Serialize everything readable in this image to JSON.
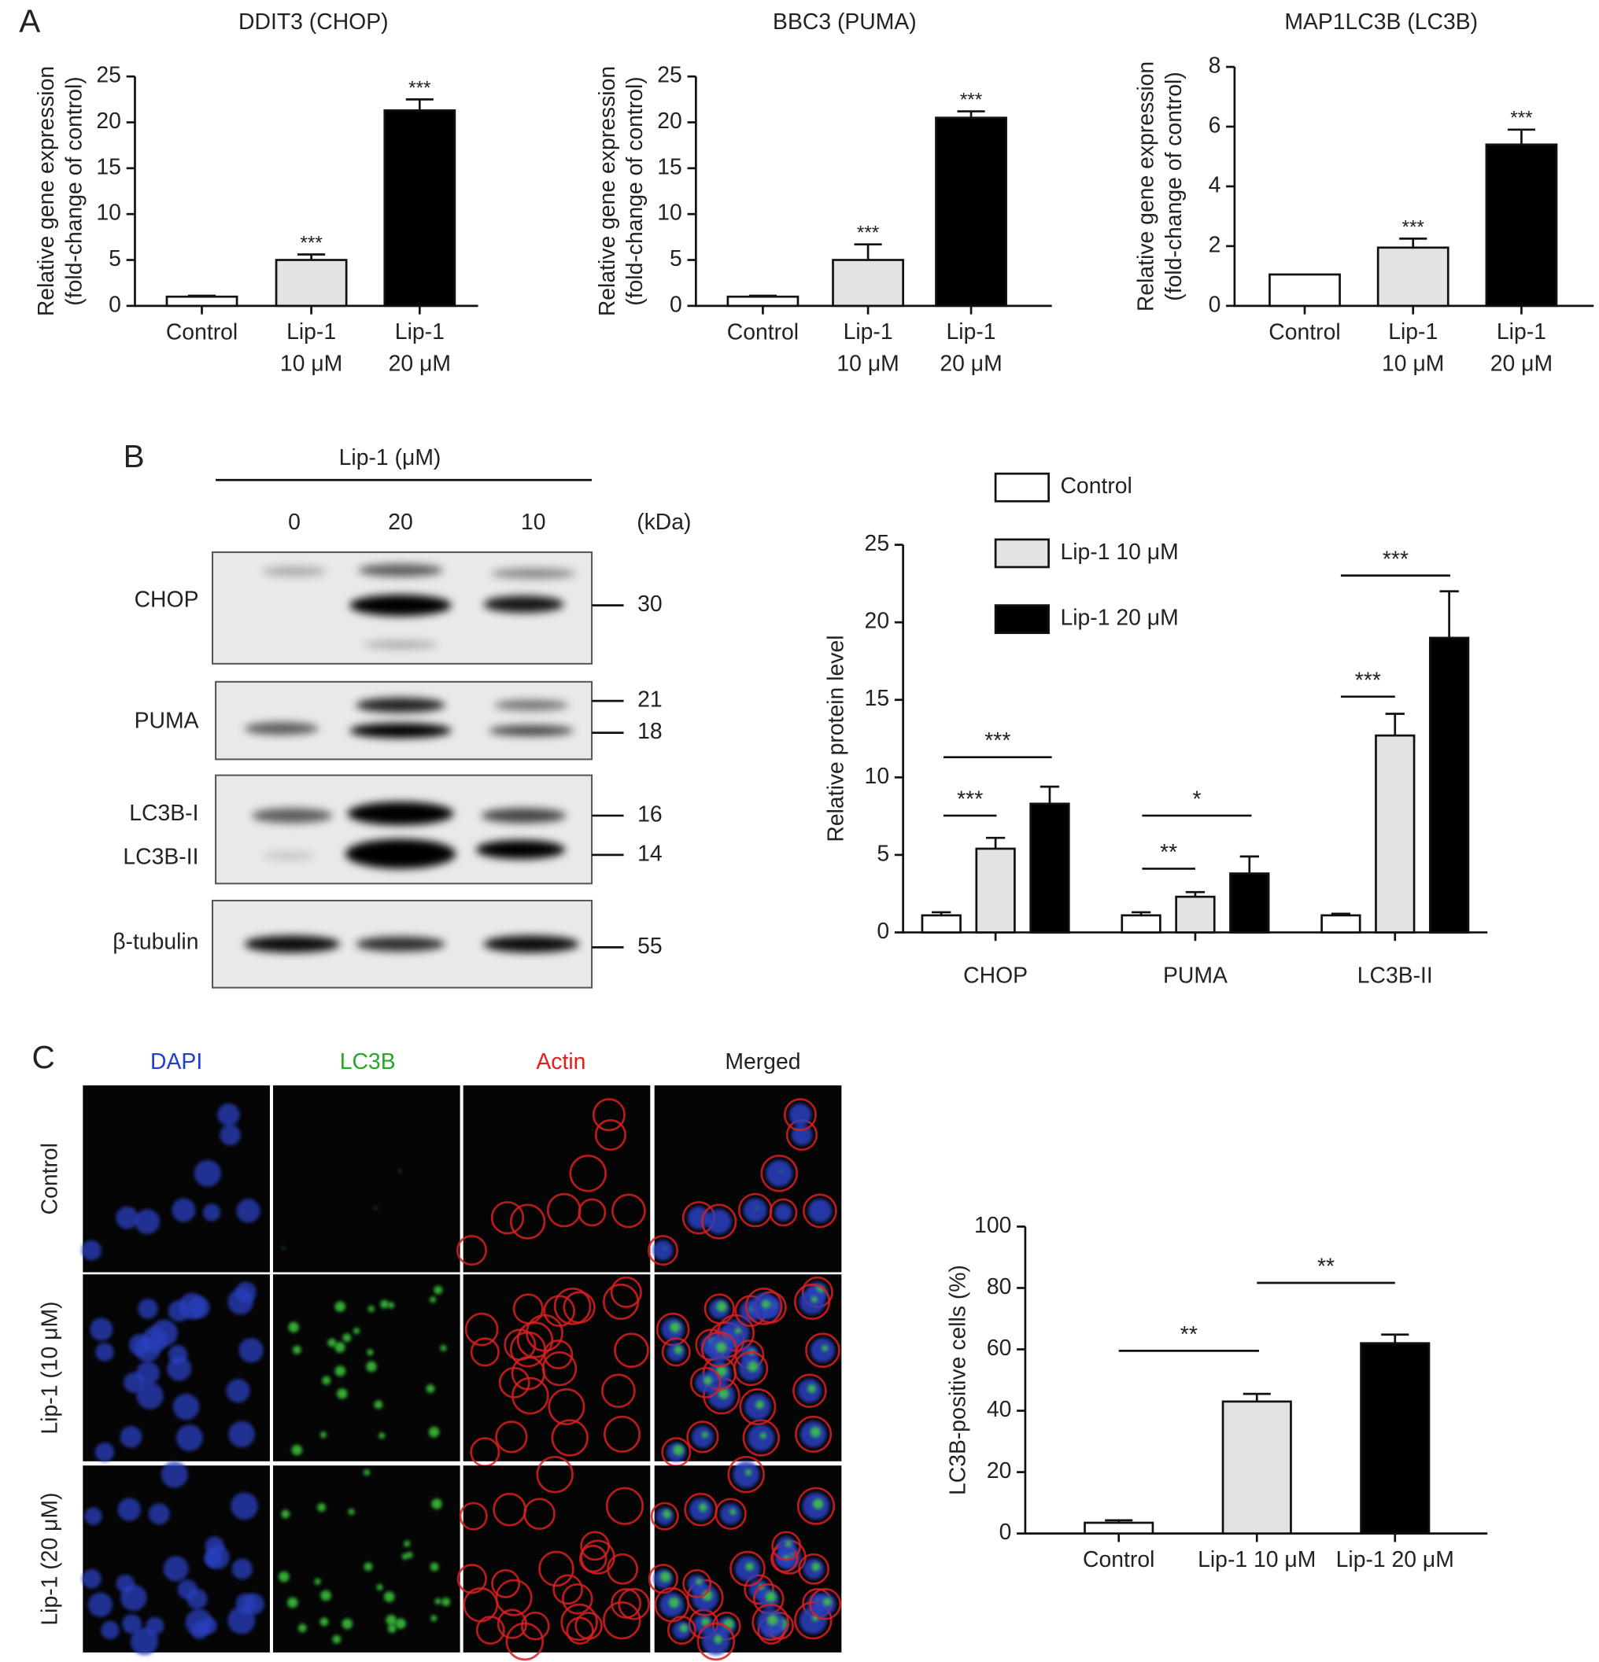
{
  "panel_labels": [
    "A",
    "B",
    "C"
  ],
  "chart_data": [
    {
      "type": "bar",
      "title": "DDIT3 (CHOP)",
      "y_label": [
        "Relative gene expression",
        "(fold-change of control)"
      ],
      "categories": [
        "Control",
        "Lip-1 10 μM",
        "Lip-1 20 μM"
      ],
      "values": [
        1.0,
        5.0,
        21.3
      ],
      "errors": [
        0.1,
        0.6,
        1.2
      ],
      "significance": [
        null,
        "***",
        "***"
      ],
      "colors": [
        "#ffffff",
        "#e3e3e3",
        "#000000"
      ],
      "ylim": [
        0,
        25
      ],
      "yticks": [
        0,
        5,
        10,
        15,
        20,
        25
      ]
    },
    {
      "type": "bar",
      "title": "BBC3 (PUMA)",
      "y_label": [
        "Relative gene expression",
        "(fold-change of control)"
      ],
      "categories": [
        "Control",
        "Lip-1 10 μM",
        "Lip-1 20 μM"
      ],
      "values": [
        1.0,
        5.0,
        20.5
      ],
      "errors": [
        0.1,
        1.7,
        0.7
      ],
      "significance": [
        null,
        "***",
        "***"
      ],
      "colors": [
        "#ffffff",
        "#e3e3e3",
        "#000000"
      ],
      "ylim": [
        0,
        25
      ],
      "yticks": [
        0,
        5,
        10,
        15,
        20,
        25
      ]
    },
    {
      "type": "bar",
      "title": "MAP1LC3B (LC3B)",
      "y_label": [
        "Relative gene expression",
        "(fold-change of control)"
      ],
      "categories": [
        "Control",
        "Lip-1 10 μM",
        "Lip-1 20 μM"
      ],
      "values": [
        1.05,
        1.95,
        5.4
      ],
      "errors": [
        0.0,
        0.3,
        0.5
      ],
      "significance": [
        null,
        "***",
        "***"
      ],
      "colors": [
        "#ffffff",
        "#e3e3e3",
        "#000000"
      ],
      "ylim": [
        0,
        8
      ],
      "yticks": [
        0,
        2,
        4,
        6,
        8
      ]
    },
    {
      "type": "grouped_bar",
      "y_label": "Relative protein level",
      "categories": [
        "CHOP",
        "PUMA",
        "LC3B-II"
      ],
      "series": [
        {
          "name": "Control",
          "color": "#ffffff",
          "values": [
            1.1,
            1.1,
            1.1
          ],
          "errors": [
            0.2,
            0.2,
            0.1
          ]
        },
        {
          "name": "Lip-1 10 μM",
          "color": "#e3e3e3",
          "values": [
            5.4,
            2.3,
            12.7
          ],
          "errors": [
            0.7,
            0.3,
            1.4
          ]
        },
        {
          "name": "Lip-1 20 μM",
          "color": "#000000",
          "values": [
            8.3,
            3.8,
            19.0
          ],
          "errors": [
            1.1,
            1.1,
            3.0
          ]
        }
      ],
      "annotations": [
        "***",
        "***",
        "**",
        "*",
        "***",
        "***"
      ],
      "legend": "top-right",
      "ylim": [
        0,
        25
      ],
      "yticks": [
        0,
        5,
        10,
        15,
        20,
        25
      ]
    },
    {
      "type": "bar",
      "y_label": "LC3B-positive cells (%)",
      "categories": [
        "Control",
        "Lip-1 10 μM",
        "Lip-1 20 μM"
      ],
      "values": [
        3.5,
        43,
        62
      ],
      "errors": [
        0.8,
        2.5,
        2.8
      ],
      "annotations": [
        "**",
        "**"
      ],
      "colors": [
        "#ffffff",
        "#e3e3e3",
        "#000000"
      ],
      "ylim": [
        0,
        100
      ],
      "yticks": [
        0,
        20,
        40,
        60,
        80,
        100
      ]
    }
  ],
  "western_blot": {
    "header": "Lip-1 (μM)",
    "lanes": [
      "0",
      "20",
      "10"
    ],
    "unit": "(kDa)",
    "proteins": [
      "CHOP",
      "PUMA",
      "LC3B-I",
      "LC3B-II",
      "β-tubulin"
    ],
    "markers": [
      "30",
      "21",
      "18",
      "16",
      "14",
      "55"
    ]
  },
  "microscopy": {
    "channels": [
      "DAPI",
      "LC3B",
      "Actin",
      "Merged"
    ],
    "rows": [
      "Control",
      "Lip-1 (10 μM)",
      "Lip-1 (20 μM)"
    ]
  }
}
